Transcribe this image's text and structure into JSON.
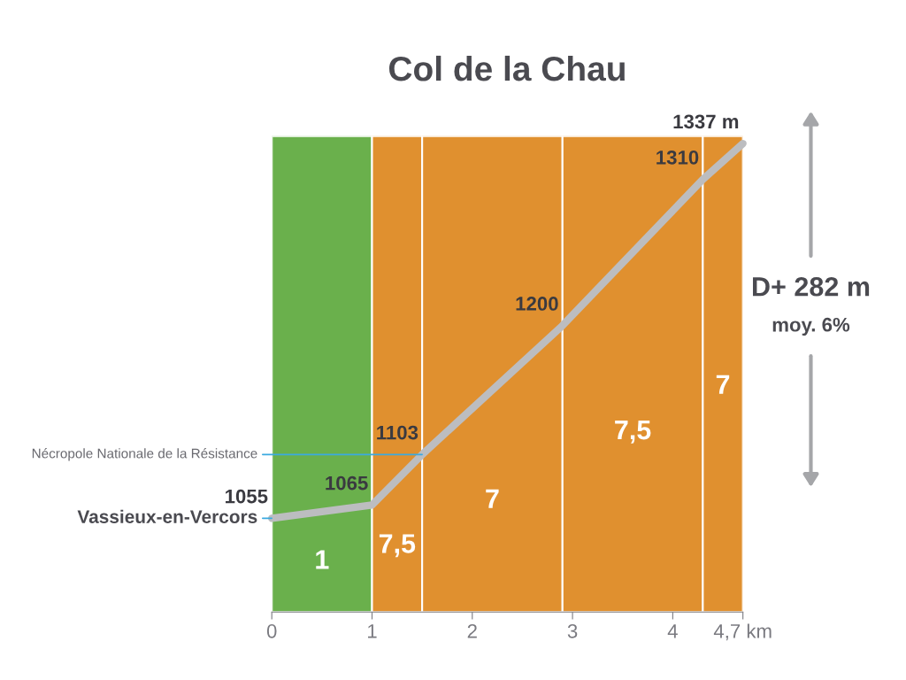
{
  "chart_data": {
    "type": "line",
    "title": "Col de la Chau",
    "x": [
      0,
      1,
      1.5,
      2.9,
      4.3,
      4.7
    ],
    "series": [
      {
        "color": "#bcbdc0",
        "values": [
          1055,
          1065,
          1103,
          1200,
          1310,
          1337
        ],
        "value_labels": [
          "1055",
          "1065",
          "1103",
          "1200",
          "1310",
          "1337 m"
        ]
      }
    ],
    "xlim": [
      0,
      4.7
    ],
    "xticks": [
      0,
      1,
      2,
      3,
      4,
      {
        "value": 4.7,
        "label": "4,7 km"
      }
    ],
    "bands": [
      {
        "axis": "x",
        "from": 0,
        "to": 1,
        "label": "1",
        "color": "#6ab04c"
      },
      {
        "axis": "x",
        "from": 1,
        "to": 1.5,
        "label": "7,5",
        "color": "#e0902f"
      },
      {
        "axis": "x",
        "from": 1.5,
        "to": 2.9,
        "label": "7",
        "color": "#e0902f"
      },
      {
        "axis": "x",
        "from": 2.9,
        "to": 4.3,
        "label": "7,5",
        "color": "#e0902f"
      },
      {
        "axis": "x",
        "from": 4.3,
        "to": 4.7,
        "label": "7",
        "color": "#e0902f"
      }
    ],
    "annotations": [
      {
        "text": "Vassieux-en-Vercors",
        "x": 0,
        "y": 1055
      },
      {
        "text": "Nécropole Nationale de la Résistance",
        "x": 1.5,
        "y": 1103
      },
      "D+ 282 m",
      "moy. 6%"
    ],
    "tick_labels": "x"
  }
}
